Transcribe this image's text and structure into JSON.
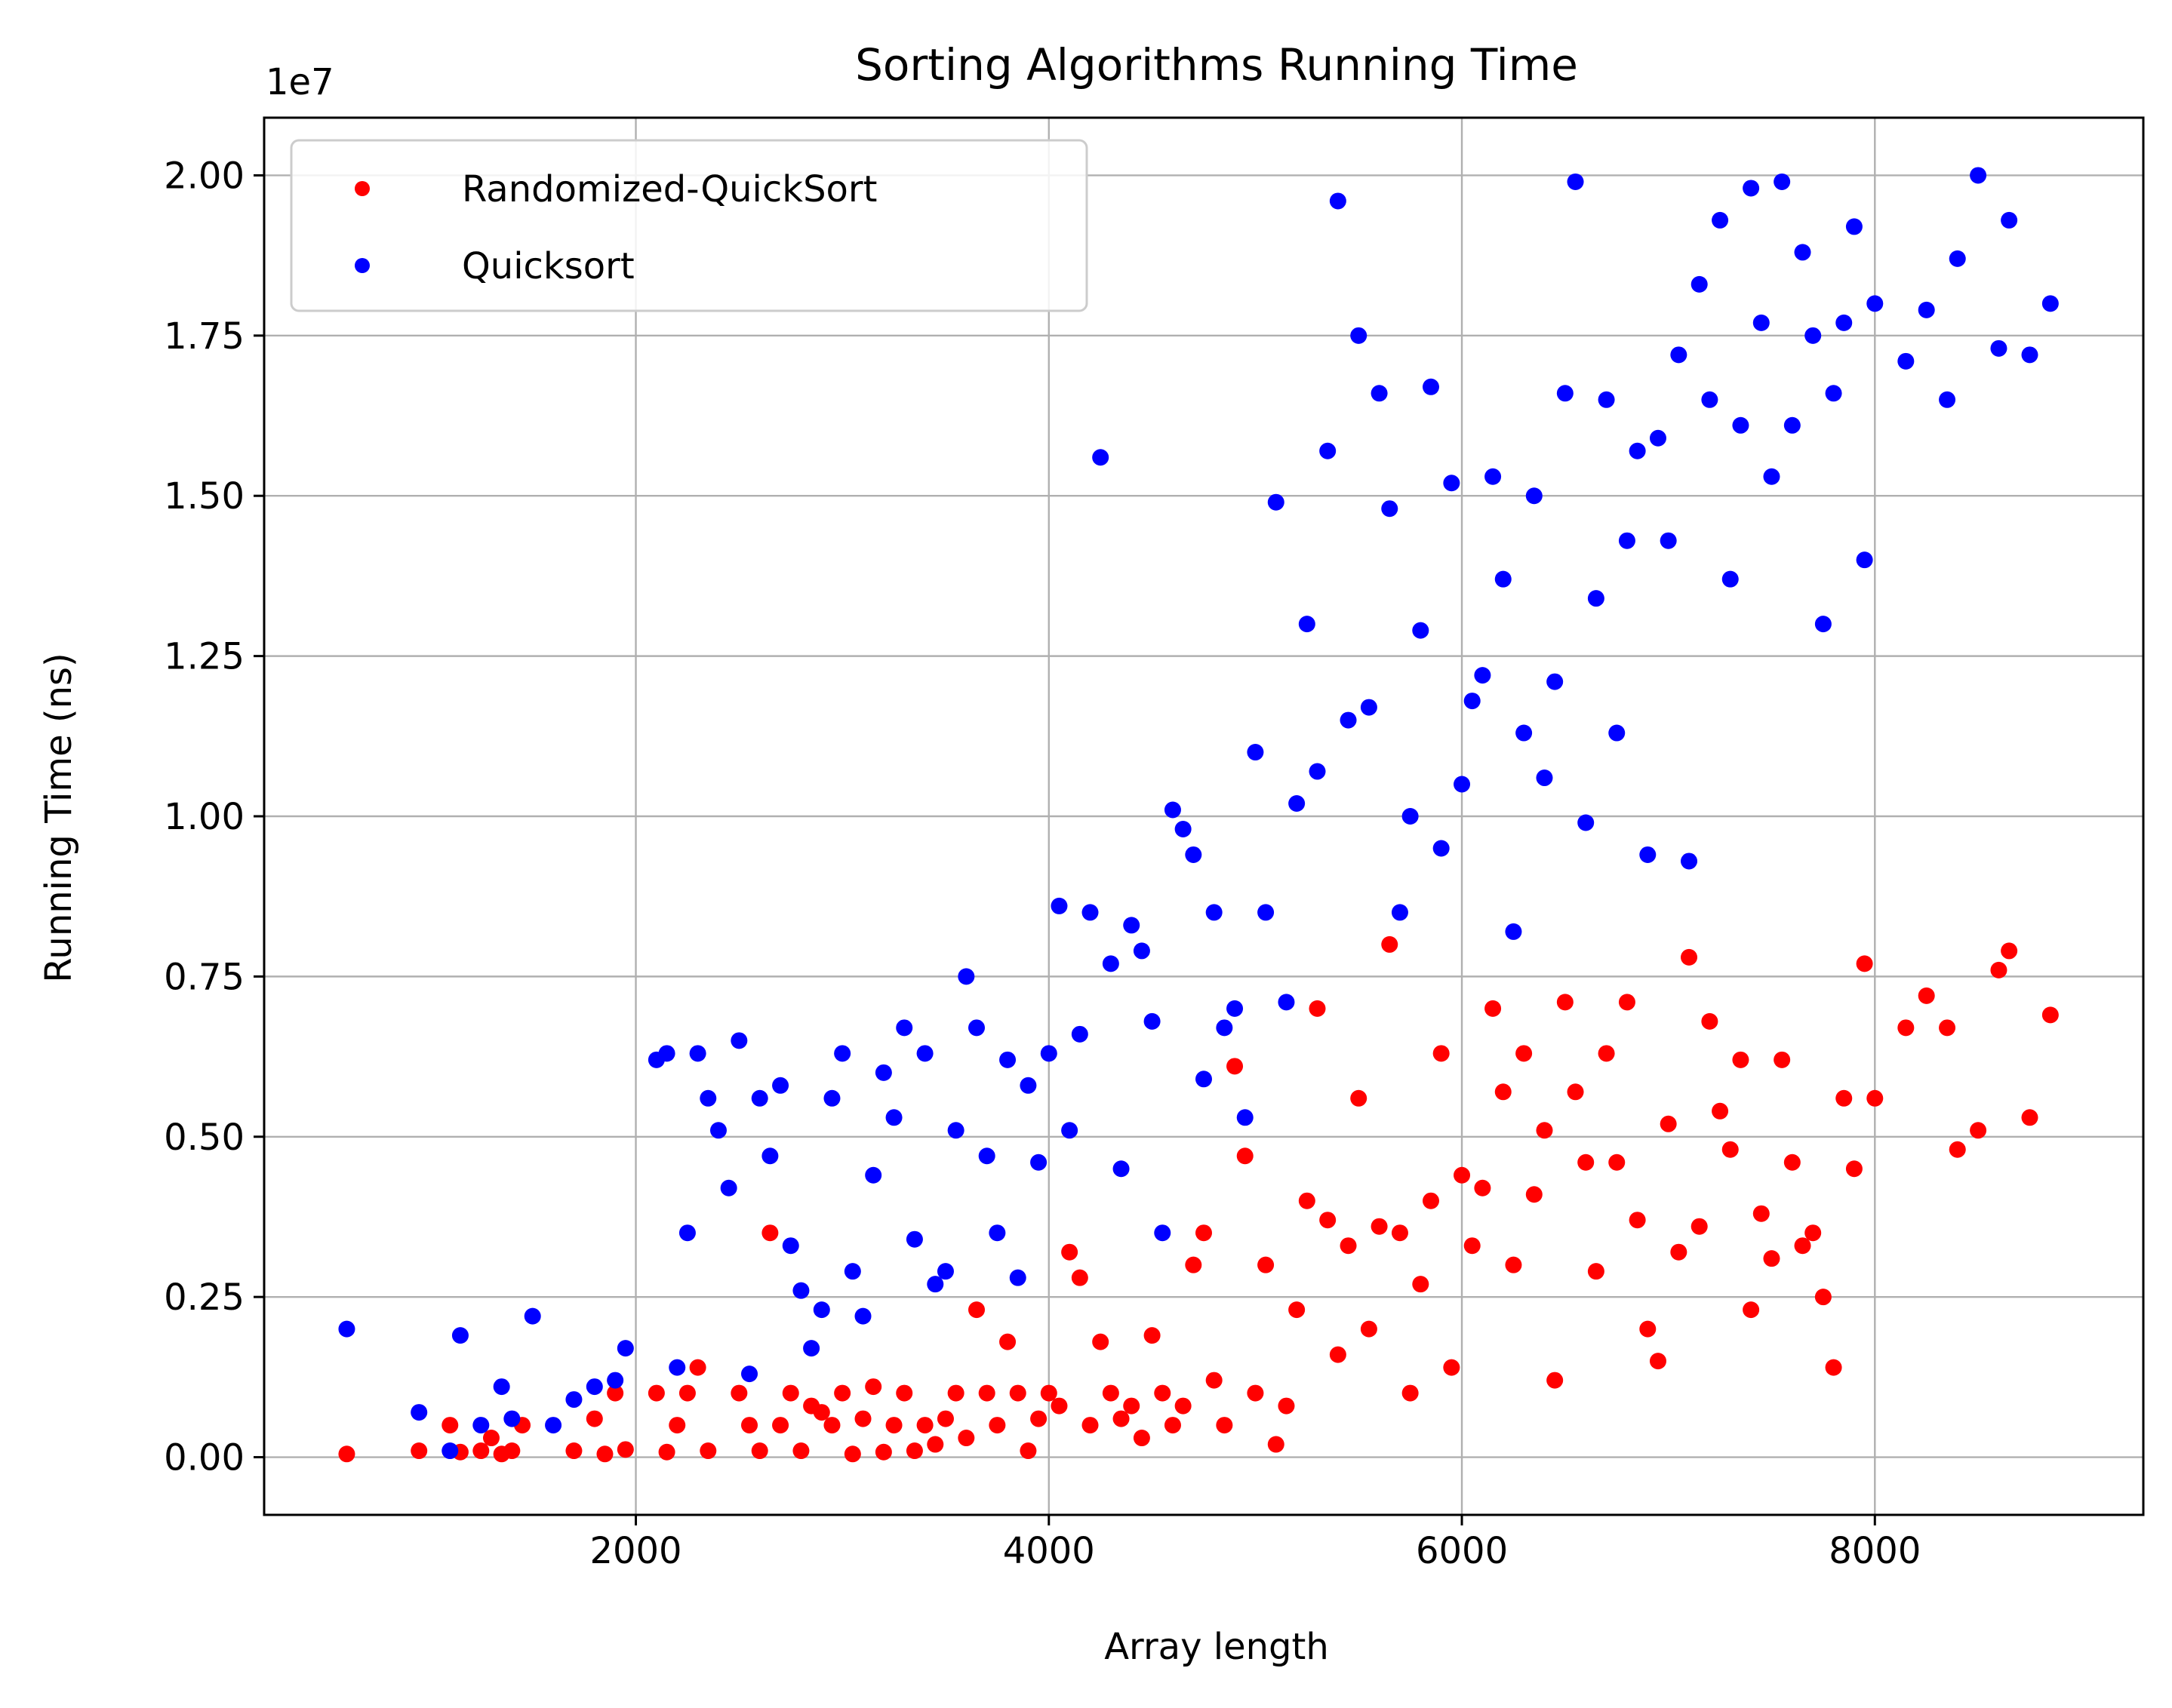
{
  "chart_data": {
    "type": "scatter",
    "title": "Sorting Algorithms Running Time",
    "xlabel": "Array length",
    "ylabel": "Running Time (ns)",
    "y_offset_label": "1e7",
    "xlim": [
      200,
      9300
    ],
    "ylim": [
      -900000,
      20900000
    ],
    "x_ticks": [
      2000,
      4000,
      6000,
      8000
    ],
    "x_tick_labels": [
      "2000",
      "4000",
      "6000",
      "8000"
    ],
    "y_ticks": [
      0,
      2500000,
      5000000,
      7500000,
      10000000,
      12500000,
      15000000,
      17500000,
      20000000
    ],
    "y_tick_labels": [
      "0.00",
      "0.25",
      "0.50",
      "0.75",
      "1.00",
      "1.25",
      "1.50",
      "1.75",
      "2.00"
    ],
    "grid": true,
    "legend_position": "top-left",
    "series": [
      {
        "name": "Randomized-QuickSort",
        "color": "#ff0000",
        "points": [
          [
            600,
            50000
          ],
          [
            950,
            100000
          ],
          [
            1100,
            500000
          ],
          [
            1150,
            80000
          ],
          [
            1250,
            100000
          ],
          [
            1300,
            300000
          ],
          [
            1350,
            50000
          ],
          [
            1400,
            100000
          ],
          [
            1450,
            500000
          ],
          [
            1700,
            100000
          ],
          [
            1800,
            600000
          ],
          [
            1850,
            50000
          ],
          [
            1900,
            1000000
          ],
          [
            1950,
            120000
          ],
          [
            2100,
            1000000
          ],
          [
            2150,
            80000
          ],
          [
            2200,
            500000
          ],
          [
            2250,
            1000000
          ],
          [
            2300,
            1400000
          ],
          [
            2350,
            100000
          ],
          [
            2500,
            1000000
          ],
          [
            2550,
            500000
          ],
          [
            2600,
            100000
          ],
          [
            2650,
            3500000
          ],
          [
            2700,
            500000
          ],
          [
            2750,
            1000000
          ],
          [
            2800,
            100000
          ],
          [
            2850,
            800000
          ],
          [
            2900,
            700000
          ],
          [
            2950,
            500000
          ],
          [
            3000,
            1000000
          ],
          [
            3050,
            50000
          ],
          [
            3100,
            600000
          ],
          [
            3150,
            1100000
          ],
          [
            3200,
            80000
          ],
          [
            3250,
            500000
          ],
          [
            3300,
            1000000
          ],
          [
            3350,
            100000
          ],
          [
            3400,
            500000
          ],
          [
            3450,
            200000
          ],
          [
            3500,
            600000
          ],
          [
            3550,
            1000000
          ],
          [
            3600,
            300000
          ],
          [
            3650,
            2300000
          ],
          [
            3700,
            1000000
          ],
          [
            3750,
            500000
          ],
          [
            3800,
            1800000
          ],
          [
            3850,
            1000000
          ],
          [
            3900,
            100000
          ],
          [
            3950,
            600000
          ],
          [
            4000,
            1000000
          ],
          [
            4050,
            800000
          ],
          [
            4100,
            3200000
          ],
          [
            4150,
            2800000
          ],
          [
            4200,
            500000
          ],
          [
            4250,
            1800000
          ],
          [
            4300,
            1000000
          ],
          [
            4350,
            600000
          ],
          [
            4400,
            800000
          ],
          [
            4450,
            300000
          ],
          [
            4500,
            1900000
          ],
          [
            4550,
            1000000
          ],
          [
            4600,
            500000
          ],
          [
            4650,
            800000
          ],
          [
            4700,
            3000000
          ],
          [
            4750,
            3500000
          ],
          [
            4800,
            1200000
          ],
          [
            4850,
            500000
          ],
          [
            4900,
            6100000
          ],
          [
            4950,
            4700000
          ],
          [
            5000,
            1000000
          ],
          [
            5050,
            3000000
          ],
          [
            5100,
            200000
          ],
          [
            5150,
            800000
          ],
          [
            5200,
            2300000
          ],
          [
            5250,
            4000000
          ],
          [
            5300,
            7000000
          ],
          [
            5350,
            3700000
          ],
          [
            5400,
            1600000
          ],
          [
            5450,
            3300000
          ],
          [
            5500,
            5600000
          ],
          [
            5550,
            2000000
          ],
          [
            5600,
            3600000
          ],
          [
            5650,
            8000000
          ],
          [
            5700,
            3500000
          ],
          [
            5750,
            1000000
          ],
          [
            5800,
            2700000
          ],
          [
            5850,
            4000000
          ],
          [
            5900,
            6300000
          ],
          [
            5950,
            1400000
          ],
          [
            6000,
            4400000
          ],
          [
            6050,
            3300000
          ],
          [
            6100,
            4200000
          ],
          [
            6150,
            7000000
          ],
          [
            6200,
            5700000
          ],
          [
            6250,
            3000000
          ],
          [
            6300,
            6300000
          ],
          [
            6350,
            4100000
          ],
          [
            6400,
            5100000
          ],
          [
            6450,
            1200000
          ],
          [
            6500,
            7100000
          ],
          [
            6550,
            5700000
          ],
          [
            6600,
            4600000
          ],
          [
            6650,
            2900000
          ],
          [
            6700,
            6300000
          ],
          [
            6750,
            4600000
          ],
          [
            6800,
            7100000
          ],
          [
            6850,
            3700000
          ],
          [
            6900,
            2000000
          ],
          [
            6950,
            1500000
          ],
          [
            7000,
            5200000
          ],
          [
            7050,
            3200000
          ],
          [
            7100,
            7800000
          ],
          [
            7150,
            3600000
          ],
          [
            7200,
            6800000
          ],
          [
            7250,
            5400000
          ],
          [
            7300,
            4800000
          ],
          [
            7350,
            6200000
          ],
          [
            7400,
            2300000
          ],
          [
            7450,
            3800000
          ],
          [
            7500,
            3100000
          ],
          [
            7550,
            6200000
          ],
          [
            7600,
            4600000
          ],
          [
            7650,
            3300000
          ],
          [
            7700,
            3500000
          ],
          [
            7750,
            2500000
          ],
          [
            7800,
            1400000
          ],
          [
            7850,
            5600000
          ],
          [
            7900,
            4500000
          ],
          [
            7950,
            7700000
          ],
          [
            8000,
            5600000
          ],
          [
            8150,
            6700000
          ],
          [
            8250,
            7200000
          ],
          [
            8350,
            6700000
          ],
          [
            8400,
            4800000
          ],
          [
            8500,
            5100000
          ],
          [
            8600,
            7600000
          ],
          [
            8650,
            7900000
          ],
          [
            8750,
            5300000
          ],
          [
            8850,
            6900000
          ]
        ]
      },
      {
        "name": "Quicksort",
        "color": "#0000ff",
        "points": [
          [
            600,
            2000000
          ],
          [
            950,
            700000
          ],
          [
            1100,
            100000
          ],
          [
            1150,
            1900000
          ],
          [
            1250,
            500000
          ],
          [
            1350,
            1100000
          ],
          [
            1400,
            600000
          ],
          [
            1500,
            2200000
          ],
          [
            1600,
            500000
          ],
          [
            1700,
            900000
          ],
          [
            1800,
            1100000
          ],
          [
            1900,
            1200000
          ],
          [
            1950,
            1700000
          ],
          [
            2100,
            6200000
          ],
          [
            2150,
            6300000
          ],
          [
            2200,
            1400000
          ],
          [
            2250,
            3500000
          ],
          [
            2300,
            6300000
          ],
          [
            2350,
            5600000
          ],
          [
            2400,
            5100000
          ],
          [
            2450,
            4200000
          ],
          [
            2500,
            6500000
          ],
          [
            2550,
            1300000
          ],
          [
            2600,
            5600000
          ],
          [
            2650,
            4700000
          ],
          [
            2700,
            5800000
          ],
          [
            2750,
            3300000
          ],
          [
            2800,
            2600000
          ],
          [
            2850,
            1700000
          ],
          [
            2900,
            2300000
          ],
          [
            2950,
            5600000
          ],
          [
            3000,
            6300000
          ],
          [
            3050,
            2900000
          ],
          [
            3100,
            2200000
          ],
          [
            3150,
            4400000
          ],
          [
            3200,
            6000000
          ],
          [
            3250,
            5300000
          ],
          [
            3300,
            6700000
          ],
          [
            3350,
            3400000
          ],
          [
            3400,
            6300000
          ],
          [
            3450,
            2700000
          ],
          [
            3500,
            2900000
          ],
          [
            3550,
            5100000
          ],
          [
            3600,
            7500000
          ],
          [
            3650,
            6700000
          ],
          [
            3700,
            4700000
          ],
          [
            3750,
            3500000
          ],
          [
            3800,
            6200000
          ],
          [
            3850,
            2800000
          ],
          [
            3900,
            5800000
          ],
          [
            3950,
            4600000
          ],
          [
            4000,
            6300000
          ],
          [
            4050,
            8600000
          ],
          [
            4100,
            5100000
          ],
          [
            4150,
            6600000
          ],
          [
            4200,
            8500000
          ],
          [
            4250,
            15600000
          ],
          [
            4300,
            7700000
          ],
          [
            4350,
            4500000
          ],
          [
            4400,
            8300000
          ],
          [
            4450,
            7900000
          ],
          [
            4500,
            6800000
          ],
          [
            4550,
            3500000
          ],
          [
            4600,
            10100000
          ],
          [
            4650,
            9800000
          ],
          [
            4700,
            9400000
          ],
          [
            4750,
            5900000
          ],
          [
            4800,
            8500000
          ],
          [
            4850,
            6700000
          ],
          [
            4900,
            7000000
          ],
          [
            4950,
            5300000
          ],
          [
            5000,
            11000000
          ],
          [
            5050,
            8500000
          ],
          [
            5100,
            14900000
          ],
          [
            5150,
            7100000
          ],
          [
            5200,
            10200000
          ],
          [
            5250,
            13000000
          ],
          [
            5300,
            10700000
          ],
          [
            5350,
            15700000
          ],
          [
            5400,
            19600000
          ],
          [
            5450,
            11500000
          ],
          [
            5500,
            17500000
          ],
          [
            5550,
            11700000
          ],
          [
            5600,
            16600000
          ],
          [
            5650,
            14800000
          ],
          [
            5700,
            8500000
          ],
          [
            5750,
            10000000
          ],
          [
            5800,
            12900000
          ],
          [
            5850,
            16700000
          ],
          [
            5900,
            9500000
          ],
          [
            5950,
            15200000
          ],
          [
            6000,
            10500000
          ],
          [
            6050,
            11800000
          ],
          [
            6100,
            12200000
          ],
          [
            6150,
            15300000
          ],
          [
            6200,
            13700000
          ],
          [
            6250,
            8200000
          ],
          [
            6300,
            11300000
          ],
          [
            6350,
            15000000
          ],
          [
            6400,
            10600000
          ],
          [
            6450,
            12100000
          ],
          [
            6500,
            16600000
          ],
          [
            6550,
            19900000
          ],
          [
            6600,
            9900000
          ],
          [
            6650,
            13400000
          ],
          [
            6700,
            16500000
          ],
          [
            6750,
            11300000
          ],
          [
            6800,
            14300000
          ],
          [
            6850,
            15700000
          ],
          [
            6900,
            9400000
          ],
          [
            6950,
            15900000
          ],
          [
            7000,
            14300000
          ],
          [
            7050,
            17200000
          ],
          [
            7100,
            9300000
          ],
          [
            7150,
            18300000
          ],
          [
            7200,
            16500000
          ],
          [
            7250,
            19300000
          ],
          [
            7300,
            13700000
          ],
          [
            7350,
            16100000
          ],
          [
            7400,
            19800000
          ],
          [
            7450,
            17700000
          ],
          [
            7500,
            15300000
          ],
          [
            7550,
            19900000
          ],
          [
            7600,
            16100000
          ],
          [
            7650,
            18800000
          ],
          [
            7700,
            17500000
          ],
          [
            7750,
            13000000
          ],
          [
            7800,
            16600000
          ],
          [
            7850,
            17700000
          ],
          [
            7900,
            19200000
          ],
          [
            7950,
            14000000
          ],
          [
            8000,
            18000000
          ],
          [
            8150,
            17100000
          ],
          [
            8250,
            17900000
          ],
          [
            8350,
            16500000
          ],
          [
            8400,
            18700000
          ],
          [
            8500,
            20000000
          ],
          [
            8600,
            17300000
          ],
          [
            8650,
            19300000
          ],
          [
            8750,
            17200000
          ],
          [
            8850,
            18000000
          ]
        ]
      }
    ]
  }
}
